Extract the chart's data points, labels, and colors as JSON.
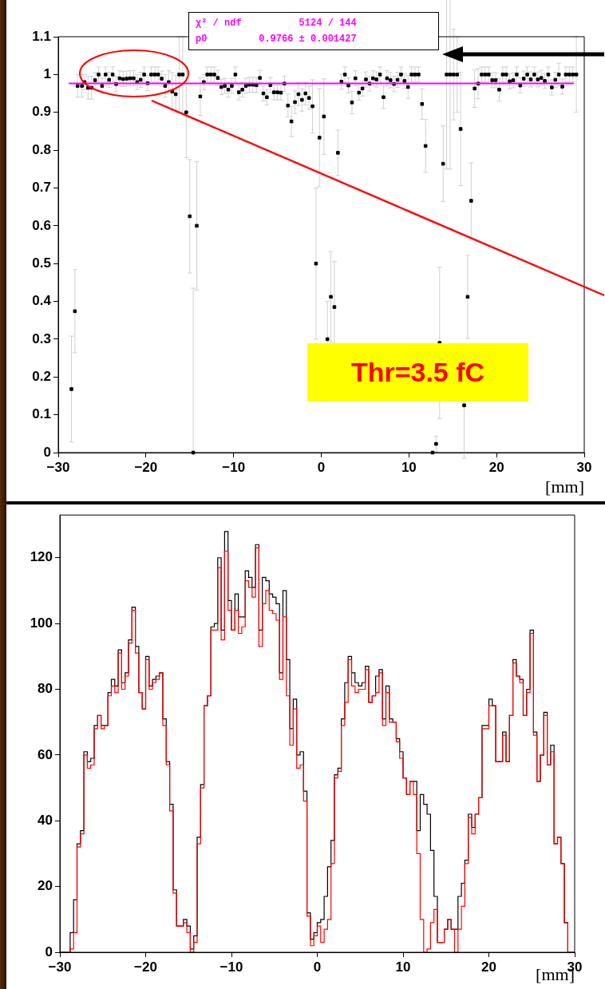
{
  "chart_data": [
    {
      "type": "scatter",
      "xlabel": "[mm]",
      "xlim": [
        -30,
        30
      ],
      "xticks": [
        -30,
        -20,
        -10,
        0,
        10,
        20,
        30
      ],
      "ylim": [
        0,
        1.1
      ],
      "yticks": [
        0,
        0.1,
        0.2,
        0.3,
        0.4,
        0.5,
        0.6,
        0.7,
        0.8,
        0.9,
        1,
        1.1
      ],
      "annotations": [
        "χ² / ndf          5124 / 144",
        "p0         0.9766 ± 0.001427",
        "Thr=3.5 fC"
      ],
      "series": [
        {
          "type": "scatter",
          "marker": "square",
          "color": "#000000",
          "x": [
            -28.5,
            -28.1,
            -27.8,
            -27.3,
            -27.0,
            -26.6,
            -26.2,
            -25.8,
            -25.4,
            -25.0,
            -24.6,
            -24.2,
            -23.8,
            -23.4,
            -23.0,
            -22.6,
            -22.2,
            -21.8,
            -21.4,
            -21.0,
            -20.6,
            -20.2,
            -19.8,
            -19.4,
            -19.0,
            -18.6,
            -18.2,
            -17.8,
            -17.4,
            -17.0,
            -16.6,
            -16.2,
            -15.8,
            -15.4,
            -15.0,
            -14.6,
            -14.2,
            -13.8,
            -13.4,
            -13.0,
            -12.6,
            -12.2,
            -11.8,
            -11.4,
            -11.0,
            -10.6,
            -10.2,
            -9.8,
            -9.4,
            -9.0,
            -8.6,
            -8.2,
            -7.8,
            -7.4,
            -7.0,
            -6.6,
            -6.2,
            -5.8,
            -5.4,
            -5.0,
            -4.6,
            -4.2,
            -3.8,
            -3.4,
            -3.0,
            -2.6,
            -2.2,
            -1.8,
            -1.4,
            -1.0,
            -0.6,
            -0.2,
            0.3,
            0.7,
            1.1,
            1.5,
            1.9,
            2.3,
            2.7,
            3.1,
            3.5,
            3.9,
            4.3,
            4.7,
            5.1,
            5.5,
            5.9,
            6.3,
            6.7,
            7.1,
            7.5,
            7.9,
            8.3,
            8.7,
            9.1,
            9.5,
            9.9,
            10.3,
            10.7,
            11.1,
            11.5,
            11.9,
            12.7,
            13.1,
            13.5,
            13.9,
            14.3,
            14.7,
            15.1,
            15.5,
            15.9,
            16.3,
            16.7,
            17.1,
            17.5,
            17.9,
            18.3,
            18.7,
            19.1,
            19.5,
            19.9,
            20.3,
            20.7,
            21.1,
            21.5,
            21.9,
            22.3,
            22.7,
            23.1,
            23.5,
            23.9,
            24.3,
            24.7,
            25.1,
            25.5,
            25.9,
            26.3,
            26.7,
            27.1,
            27.5,
            27.9,
            28.3,
            28.7,
            29.1
          ],
          "values": [
            0.168,
            0.374,
            0.97,
            0.97,
            0.98,
            0.965,
            0.965,
            0.985,
            1.0,
            0.97,
            1.0,
            0.986,
            1.0,
            0.975,
            0.99,
            0.988,
            0.989,
            0.99,
            0.99,
            0.98,
            0.986,
            1.0,
            0.977,
            1.0,
            1.0,
            1.0,
            0.989,
            0.97,
            0.98,
            0.955,
            0.948,
            1.0,
            1.0,
            0.9,
            0.625,
            0,
            0.6,
            0.942,
            0.98,
            1.0,
            1.0,
            1.0,
            0.991,
            0.967,
            0.97,
            0.96,
            0.97,
            1.0,
            0.953,
            0.96,
            0.97,
            0.973,
            0.973,
            0.972,
            0.991,
            0.95,
            0.94,
            0.972,
            0.953,
            0.953,
            0.952,
            0.976,
            0.918,
            0.876,
            0.927,
            0.948,
            0.933,
            0.95,
            0.938,
            0.916,
            0.5,
            0.833,
            0.889,
            0.3,
            0.412,
            0.385,
            0.793,
            0.981,
            1.0,
            0.971,
            0.926,
            0.99,
            0.952,
            0.963,
            0.987,
            0.976,
            0.99,
            0.987,
            1.0,
            0.94,
            0.99,
            0.985,
            0.975,
            0.986,
            1.0,
            0.983,
            0.967,
            1.0,
            1.0,
            1.0,
            0.922,
            0.811,
            0,
            0.023,
            0.29,
            0.764,
            1.0,
            1.0,
            1.0,
            1.0,
            0.856,
            0.125,
            0.412,
            0.666,
            0.963,
            0.976,
            1.0,
            1.0,
            1.0,
            0.985,
            0.985,
            0.96,
            1.0,
            1.0,
            0.982,
            0.985,
            1.0,
            0.971,
            0.989,
            1.0,
            0.987,
            1.0,
            0.987,
            0.991,
            0.983,
            1.0,
            0.966,
            0.986,
            1.0,
            0.968,
            1.0,
            1.0,
            1.0,
            1.0
          ],
          "errors": [
            0.14,
            0.11,
            0.03,
            0.03,
            0.02,
            0.03,
            0.03,
            0.02,
            0.02,
            0.02,
            0.02,
            0.02,
            0.02,
            0.02,
            0.02,
            0.02,
            0.02,
            0.02,
            0.02,
            0.02,
            0.02,
            0.02,
            0.02,
            0.02,
            0.02,
            0.02,
            0.02,
            0.03,
            0.03,
            0.05,
            0.05,
            0.1,
            0.1,
            0.12,
            0.15,
            [
              0,
              0.435
            ],
            0.17,
            0.05,
            0.02,
            0.02,
            0.02,
            0.02,
            0.02,
            0.02,
            0.02,
            0.02,
            0.02,
            0.02,
            0.02,
            0.02,
            0.02,
            0.02,
            0.02,
            0.02,
            0.02,
            0.02,
            0.02,
            0.02,
            0.02,
            0.02,
            0.02,
            0.02,
            0.03,
            0.04,
            0.03,
            0.03,
            0.03,
            0.03,
            0.03,
            0.07,
            0.2,
            0.13,
            0.1,
            0.1,
            0.12,
            0.12,
            0.06,
            0.02,
            0.02,
            0.02,
            0.03,
            0.02,
            0.02,
            0.02,
            0.02,
            0.02,
            0.02,
            0.02,
            0.02,
            0.03,
            0.02,
            0.02,
            0.02,
            0.02,
            0.02,
            0.02,
            0.03,
            0.02,
            0.02,
            0.02,
            0.04,
            0.07,
            null,
            0.02,
            0.2,
            0.1,
            0.25,
            0.25,
            0.12,
            0.1,
            0.15,
            0.14,
            0.11,
            0.1,
            0.05,
            0.04,
            0.02,
            0.02,
            0.02,
            0.02,
            0.02,
            0.03,
            0.02,
            0.02,
            0.02,
            0.02,
            0.02,
            0.02,
            0.02,
            0.02,
            0.02,
            0.02,
            0.02,
            0.02,
            0.02,
            0.02,
            0.02,
            0.02,
            0.03,
            0.02,
            0.02,
            0.02,
            0.02,
            0.1
          ]
        },
        {
          "type": "line",
          "color": "#ff00ff",
          "x": [
            -28.8,
            28.8
          ],
          "values": [
            0.9766,
            0.9766
          ]
        }
      ]
    },
    {
      "type": "histogram",
      "xlabel": "[mm]",
      "xlim": [
        -30,
        30
      ],
      "xticks": [
        -30,
        -20,
        -10,
        0,
        10,
        20,
        30
      ],
      "ylim": [
        0,
        133
      ],
      "yticks": [
        0,
        20,
        40,
        60,
        80,
        100,
        120
      ],
      "bins": [
        -30,
        -29.6,
        -29.2,
        -28.8,
        -28.4,
        -28,
        -27.6,
        -27.2,
        -26.8,
        -26.4,
        -26,
        -25.6,
        -25.2,
        -24.8,
        -24.4,
        -24,
        -23.6,
        -23.2,
        -22.8,
        -22.4,
        -22,
        -21.6,
        -21.2,
        -20.8,
        -20.4,
        -20,
        -19.6,
        -19.2,
        -18.8,
        -18.4,
        -18,
        -17.6,
        -17.2,
        -16.8,
        -16.4,
        -16,
        -15.6,
        -15.2,
        -14.8,
        -14.4,
        -14,
        -13.6,
        -13.2,
        -12.8,
        -12.4,
        -12,
        -11.6,
        -11.2,
        -10.8,
        -10.4,
        -10,
        -9.6,
        -9.2,
        -8.8,
        -8.4,
        -8,
        -7.6,
        -7.2,
        -6.8,
        -6.4,
        -6,
        -5.6,
        -5.2,
        -4.8,
        -4.4,
        -4,
        -3.6,
        -3.2,
        -2.8,
        -2.4,
        -2,
        -1.6,
        -1.2,
        -0.8,
        -0.4,
        0,
        0.4,
        0.8,
        1.2,
        1.6,
        2,
        2.4,
        2.8,
        3.2,
        3.6,
        4,
        4.4,
        4.8,
        5.2,
        5.6,
        6,
        6.4,
        6.8,
        7.2,
        7.6,
        8,
        8.4,
        8.8,
        9.2,
        9.6,
        10,
        10.4,
        10.8,
        11.2,
        11.6,
        12,
        12.4,
        12.8,
        13.2,
        13.6,
        14,
        14.4,
        14.8,
        15.2,
        15.6,
        16,
        16.4,
        16.8,
        17.2,
        17.6,
        18,
        18.4,
        18.8,
        19.2,
        19.6,
        20,
        20.4,
        20.8,
        21.2,
        21.6,
        22,
        22.4,
        22.8,
        23.2,
        23.6,
        24,
        24.4,
        24.8,
        25.2,
        25.6,
        26,
        26.4,
        26.8,
        27.2,
        27.6,
        28,
        28.4,
        28.8,
        29.2,
        29.6,
        30
      ],
      "series": [
        {
          "color": "#000000",
          "values": [
            0,
            0,
            0,
            6,
            16,
            33,
            37,
            61,
            58,
            59,
            69,
            72,
            69,
            69,
            79,
            83,
            81,
            92,
            82,
            85,
            95,
            105,
            93,
            79,
            74,
            90,
            81,
            83,
            84,
            85,
            71,
            58,
            45,
            19,
            8,
            8,
            10,
            8,
            1,
            5,
            35,
            51,
            75,
            78,
            99,
            100,
            120,
            98,
            128,
            107,
            98,
            109,
            102,
            102,
            116,
            114,
            111,
            124,
            98,
            114,
            113,
            109,
            108,
            106,
            85,
            110,
            89,
            68,
            77,
            60,
            61,
            49,
            12,
            4,
            6,
            9,
            10,
            17,
            26,
            34,
            54,
            56,
            71,
            82,
            90,
            85,
            82,
            81,
            82,
            87,
            76,
            78,
            84,
            86,
            71,
            81,
            71,
            70,
            65,
            61,
            53,
            48,
            52,
            52,
            37,
            48,
            45,
            42,
            31,
            17,
            3,
            3,
            7,
            10,
            7,
            7,
            17,
            21,
            28,
            42,
            38,
            42,
            47,
            69,
            69,
            77,
            75,
            58,
            58,
            67,
            58,
            72,
            89,
            84,
            83,
            72,
            80,
            98,
            67,
            52,
            60,
            73,
            57,
            63,
            33,
            35,
            27,
            9,
            0,
            0
          ]
        },
        {
          "color": "#ff0000",
          "values": [
            0,
            0,
            0,
            1,
            6,
            32,
            36,
            60,
            56,
            57,
            68,
            72,
            68,
            69,
            78,
            81,
            79,
            91,
            80,
            84,
            94,
            104,
            91,
            79,
            74,
            89,
            80,
            82,
            83,
            85,
            69,
            57,
            43,
            18,
            8,
            8,
            9,
            6,
            0,
            3,
            33,
            50,
            75,
            78,
            98,
            98,
            117,
            95,
            122,
            104,
            98,
            104,
            97,
            99,
            113,
            111,
            108,
            123,
            93,
            106,
            110,
            104,
            103,
            101,
            83,
            102,
            78,
            63,
            74,
            56,
            57,
            46,
            11,
            2,
            5,
            8,
            3,
            7,
            10,
            27,
            53,
            55,
            69,
            76,
            89,
            81,
            79,
            80,
            80,
            86,
            76,
            78,
            79,
            85,
            69,
            79,
            70,
            70,
            64,
            59,
            53,
            48,
            52,
            48,
            30,
            10,
            0,
            1,
            9,
            13,
            3,
            3,
            7,
            10,
            7,
            0,
            7,
            14,
            27,
            41,
            36,
            42,
            47,
            68,
            68,
            75,
            75,
            58,
            58,
            66,
            58,
            72,
            88,
            84,
            82,
            72,
            79,
            97,
            66,
            52,
            60,
            72,
            57,
            61,
            33,
            35,
            27,
            9,
            0,
            0
          ]
        }
      ]
    }
  ]
}
